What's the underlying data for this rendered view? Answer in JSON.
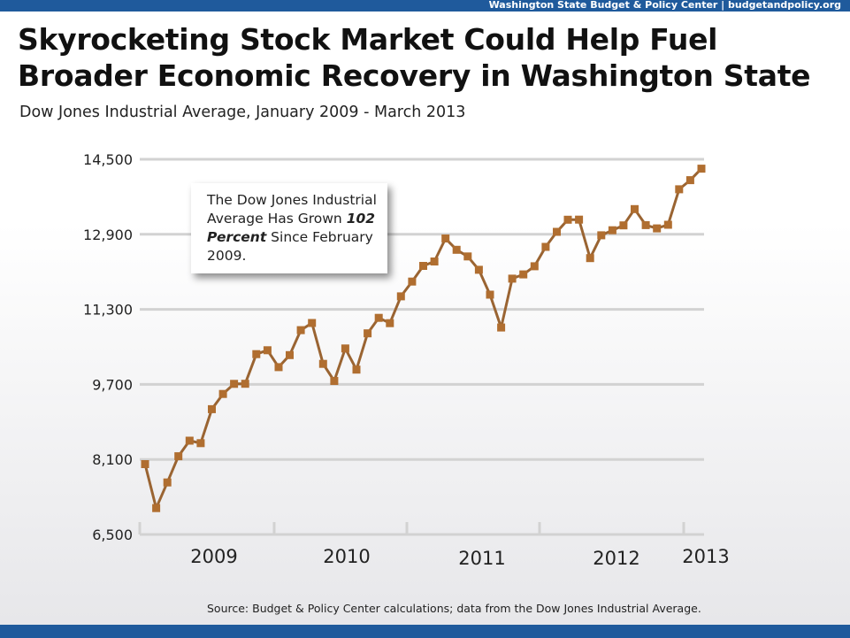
{
  "header": {
    "org_line": "Washington State Budget & Policy Center | budgetandpolicy.org",
    "title": "Skyrocketing Stock Market Could Help Fuel Broader Economic Recovery in Washington State",
    "subtitle": "Dow Jones Industrial Average, January 2009 - March 2013"
  },
  "callout": {
    "line_pre": "The Dow Jones Industrial Average Has Grown ",
    "line_bold": "102 Percent",
    "line_post": " Since February 2009."
  },
  "footer": {
    "source": "Source: Budget & Policy Center calculations; data from the Dow Jones Industrial Average."
  },
  "colors": {
    "brand_bar": "#1f5a9c",
    "line": "#9a6432",
    "marker": "#b06e30",
    "grid": "#d2d2d2"
  },
  "chart_data": {
    "type": "line",
    "title": "Skyrocketing Stock Market Could Help Fuel Broader Economic Recovery in Washington State",
    "subtitle": "Dow Jones Industrial Average, January 2009 - March 2013",
    "xlabel": "",
    "ylabel": "",
    "ylim": [
      6500,
      14500
    ],
    "yticks": [
      6500,
      8100,
      9700,
      11300,
      12900,
      14500
    ],
    "ytick_labels": [
      "6,500",
      "8,100",
      "9,700",
      "11,300",
      "12,900",
      "14,500"
    ],
    "year_labels": [
      "2009",
      "2010",
      "2011",
      "2012",
      "2013"
    ],
    "grid": true,
    "legend": "none",
    "series": [
      {
        "values": [
          8000,
          7062,
          7609,
          8168,
          8500,
          8447,
          9172,
          9496,
          9712,
          9713,
          10345,
          10428,
          10067,
          10325,
          10857,
          11009,
          10137,
          9774,
          10466,
          10015,
          10788,
          11118,
          11006,
          11578,
          11892,
          12226,
          12320,
          12811,
          12570,
          12428,
          12143,
          11614,
          10913,
          11955,
          12045,
          12218,
          12632,
          12952,
          13212,
          13214,
          12393,
          12880,
          12987,
          13091,
          13437,
          13096,
          13026,
          13104,
          13861,
          14054,
          14300
        ]
      }
    ]
  }
}
